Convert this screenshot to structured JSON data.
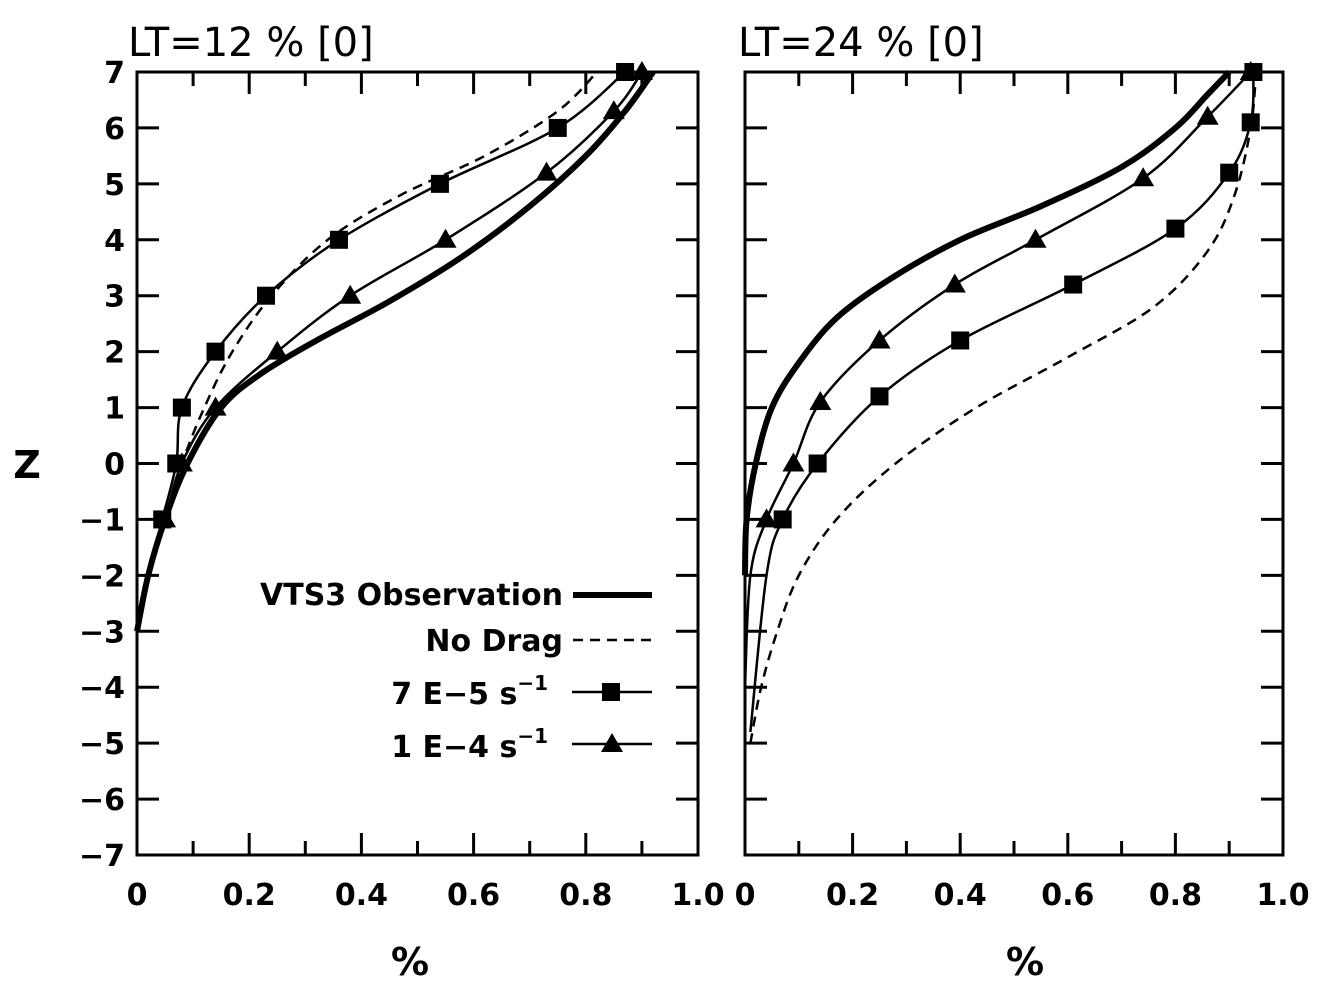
{
  "chart_data": [
    {
      "type": "line",
      "title": "LT=12 % [0]",
      "xlabel": "%",
      "ylabel": "Z",
      "xlim": [
        0,
        1.0
      ],
      "ylim": [
        -7,
        7
      ],
      "x_ticks": [
        "0",
        "0.2",
        "0.4",
        "0.6",
        "0.8",
        "1.0"
      ],
      "y_ticks": [
        "7",
        "6",
        "5",
        "4",
        "3",
        "2",
        "1",
        "0",
        "-1",
        "-2",
        "-3",
        "-4",
        "-5",
        "-6",
        "-7"
      ],
      "grid": false,
      "series": [
        {
          "name": "VTS3 Observation",
          "style": "thick",
          "x": [
            0.0,
            0.02,
            0.05,
            0.09,
            0.15,
            0.22,
            0.32,
            0.45,
            0.58,
            0.7,
            0.8,
            0.87,
            0.92
          ],
          "y": [
            -3,
            -2,
            -1,
            0,
            1,
            1.6,
            2.2,
            2.9,
            3.7,
            4.6,
            5.5,
            6.3,
            7
          ]
        },
        {
          "name": "No Drag",
          "style": "dashed",
          "x": [
            0.0,
            0.02,
            0.05,
            0.08,
            0.12,
            0.17,
            0.24,
            0.34,
            0.47,
            0.62,
            0.75,
            0.82
          ],
          "y": [
            -3,
            -2,
            -1,
            0,
            1,
            2,
            3,
            4,
            4.8,
            5.5,
            6.3,
            7
          ]
        },
        {
          "name": "7E-5 s-1",
          "style": "square",
          "x": [
            0.0,
            0.02,
            0.045,
            0.07,
            0.08,
            0.14,
            0.23,
            0.36,
            0.54,
            0.75,
            0.87
          ],
          "y": [
            -3,
            -2,
            -1,
            0,
            1,
            2,
            3,
            4,
            5,
            6,
            7
          ]
        },
        {
          "name": "1E-4 s-1",
          "style": "triangle",
          "x": [
            0.0,
            0.02,
            0.05,
            0.08,
            0.14,
            0.25,
            0.38,
            0.55,
            0.73,
            0.85,
            0.9
          ],
          "y": [
            -3,
            -2,
            -1,
            0,
            1,
            2,
            3,
            4,
            5.2,
            6.3,
            7
          ]
        }
      ],
      "legend": {
        "placement": "bottom-right",
        "entries": [
          "VTS3 Observation",
          "No Drag",
          "7E-5 s-1",
          "1E-4 s-1"
        ]
      }
    },
    {
      "type": "line",
      "title": "LT=24 % [0]",
      "xlabel": "%",
      "xlim": [
        0,
        1.0
      ],
      "ylim": [
        -7,
        7
      ],
      "x_ticks": [
        "0",
        "0.2",
        "0.4",
        "0.6",
        "0.8",
        "1.0"
      ],
      "grid": false,
      "series": [
        {
          "name": "VTS3 Observation",
          "style": "thick",
          "x": [
            0.0,
            0.003,
            0.02,
            0.05,
            0.1,
            0.17,
            0.27,
            0.4,
            0.55,
            0.7,
            0.8,
            0.86,
            0.9
          ],
          "y": [
            -2,
            -1,
            0,
            1,
            1.8,
            2.6,
            3.3,
            4,
            4.6,
            5.3,
            6,
            6.6,
            7
          ]
        },
        {
          "name": "No Drag",
          "style": "dashed",
          "x": [
            0.01,
            0.03,
            0.06,
            0.1,
            0.17,
            0.28,
            0.43,
            0.6,
            0.76,
            0.86,
            0.91,
            0.94,
            0.95
          ],
          "y": [
            -5,
            -4,
            -3,
            -2,
            -1,
            0,
            1,
            1.9,
            2.8,
            3.8,
            4.8,
            6,
            7
          ]
        },
        {
          "name": "7E-5 s-1",
          "style": "square",
          "x": [
            0.01,
            0.04,
            0.07,
            0.135,
            0.25,
            0.4,
            0.61,
            0.8,
            0.9,
            0.94,
            0.945
          ],
          "y": [
            -4.8,
            -2,
            -1,
            0,
            1.2,
            2.2,
            3.2,
            4.2,
            5.2,
            6.1,
            7
          ]
        },
        {
          "name": "1E-4 s-1",
          "style": "triangle",
          "x": [
            0.0,
            0.01,
            0.04,
            0.09,
            0.14,
            0.25,
            0.39,
            0.54,
            0.74,
            0.86,
            0.94
          ],
          "y": [
            -4,
            -2,
            -1,
            0,
            1.1,
            2.2,
            3.2,
            4,
            5.1,
            6.2,
            7
          ]
        }
      ]
    }
  ],
  "legend_labels": {
    "obs": "VTS3 Observation",
    "nodrag": "No Drag",
    "sq_main": "7 E−5 s",
    "sq_sup": "−1",
    "tri_main": "1 E−4 s",
    "tri_sup": "−1"
  }
}
